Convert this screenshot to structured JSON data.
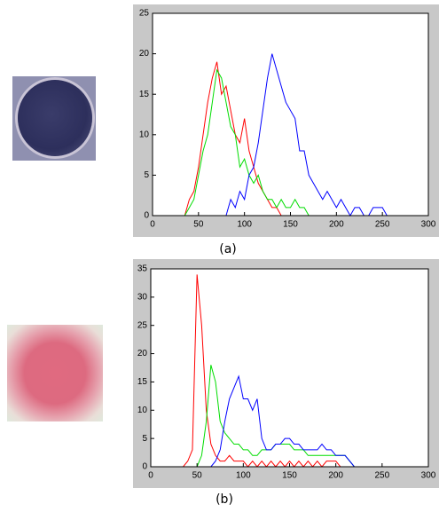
{
  "chart_data": [
    {
      "type": "line",
      "caption": "(a)",
      "x": [
        0,
        5,
        10,
        15,
        20,
        25,
        30,
        35,
        40,
        45,
        50,
        55,
        60,
        65,
        70,
        75,
        80,
        85,
        90,
        95,
        100,
        105,
        110,
        115,
        120,
        125,
        130,
        135,
        140,
        145,
        150,
        155,
        160,
        165,
        170,
        175,
        180,
        185,
        190,
        195,
        200,
        205,
        210,
        215,
        220,
        225,
        230,
        235,
        240,
        245,
        250,
        255
      ],
      "series": [
        {
          "color": "#ff0000",
          "values": [
            0,
            0,
            0,
            0,
            0,
            0,
            0,
            0,
            2,
            3,
            6,
            10,
            14,
            17,
            19,
            15,
            16,
            13,
            10,
            9,
            12,
            8,
            6,
            4,
            3,
            2,
            1,
            1,
            0,
            0,
            0,
            0,
            0,
            0,
            0,
            0,
            0,
            0,
            0,
            0,
            0,
            0,
            0,
            0,
            0,
            0,
            0,
            0,
            0,
            0,
            0,
            0
          ]
        },
        {
          "color": "#00dd00",
          "values": [
            0,
            0,
            0,
            0,
            0,
            0,
            0,
            0,
            1,
            2,
            5,
            8,
            10,
            14,
            18,
            17,
            14,
            11,
            10,
            6,
            7,
            5,
            4,
            5,
            3,
            2,
            2,
            1,
            2,
            1,
            1,
            2,
            1,
            1,
            0,
            0,
            0,
            0,
            0,
            0,
            0,
            0,
            0,
            0,
            0,
            0,
            0,
            0,
            0,
            0,
            0,
            0
          ]
        },
        {
          "color": "#0000ff",
          "values": [
            0,
            0,
            0,
            0,
            0,
            0,
            0,
            0,
            0,
            0,
            0,
            0,
            0,
            0,
            0,
            0,
            0,
            2,
            1,
            3,
            2,
            5,
            6,
            9,
            13,
            17,
            20,
            18,
            16,
            14,
            13,
            12,
            8,
            8,
            5,
            4,
            3,
            2,
            3,
            2,
            1,
            2,
            1,
            0,
            1,
            1,
            0,
            0,
            1,
            1,
            1,
            0
          ]
        }
      ],
      "xlim": [
        0,
        300
      ],
      "xticks": [
        0,
        50,
        100,
        150,
        200,
        250,
        300
      ],
      "ylim": [
        0,
        25
      ],
      "yticks": [
        0,
        5,
        10,
        15,
        20,
        25
      ]
    },
    {
      "type": "line",
      "caption": "(b)",
      "x": [
        0,
        5,
        10,
        15,
        20,
        25,
        30,
        35,
        40,
        45,
        50,
        55,
        60,
        65,
        70,
        75,
        80,
        85,
        90,
        95,
        100,
        105,
        110,
        115,
        120,
        125,
        130,
        135,
        140,
        145,
        150,
        155,
        160,
        165,
        170,
        175,
        180,
        185,
        190,
        195,
        200,
        205,
        210,
        215,
        220,
        225,
        230,
        235,
        240,
        245,
        250,
        255
      ],
      "series": [
        {
          "color": "#ff0000",
          "values": [
            0,
            0,
            0,
            0,
            0,
            0,
            0,
            0,
            1,
            3,
            34,
            25,
            10,
            4,
            2,
            1,
            1,
            2,
            1,
            1,
            1,
            0,
            1,
            0,
            1,
            0,
            1,
            0,
            1,
            0,
            1,
            0,
            1,
            0,
            1,
            0,
            1,
            0,
            1,
            1,
            1,
            0,
            0,
            0,
            0,
            0,
            0,
            0,
            0,
            0,
            0,
            0
          ]
        },
        {
          "color": "#00dd00",
          "values": [
            0,
            0,
            0,
            0,
            0,
            0,
            0,
            0,
            0,
            0,
            0,
            2,
            8,
            18,
            15,
            8,
            6,
            5,
            4,
            4,
            3,
            3,
            2,
            2,
            3,
            3,
            3,
            4,
            4,
            4,
            4,
            3,
            3,
            3,
            2,
            2,
            2,
            2,
            2,
            2,
            2,
            2,
            2,
            1,
            0,
            0,
            0,
            0,
            0,
            0,
            0,
            0
          ]
        },
        {
          "color": "#0000ff",
          "values": [
            0,
            0,
            0,
            0,
            0,
            0,
            0,
            0,
            0,
            0,
            0,
            0,
            0,
            0,
            1,
            3,
            8,
            12,
            14,
            16,
            12,
            12,
            10,
            12,
            5,
            3,
            3,
            4,
            4,
            5,
            5,
            4,
            4,
            3,
            3,
            3,
            3,
            4,
            3,
            3,
            2,
            2,
            2,
            1,
            0,
            0,
            0,
            0,
            0,
            0,
            0,
            0
          ]
        }
      ],
      "xlim": [
        0,
        300
      ],
      "xticks": [
        0,
        50,
        100,
        150,
        200,
        250,
        300
      ],
      "ylim": [
        0,
        35
      ],
      "yticks": [
        0,
        5,
        10,
        15,
        20,
        25,
        30,
        35
      ]
    }
  ]
}
